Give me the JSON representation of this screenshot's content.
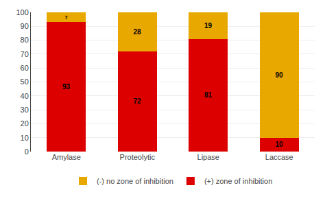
{
  "chart_data": {
    "type": "bar",
    "stacked": true,
    "categories": [
      "Amylase",
      "Proteolytic",
      "Lipase",
      "Laccase"
    ],
    "series": [
      {
        "name": "(+) zone of inhibition",
        "color": "#dc0000",
        "values": [
          93,
          72,
          81,
          10
        ]
      },
      {
        "name": "(-) no zone of inhibition",
        "color": "#e8a800",
        "values": [
          7,
          28,
          19,
          90
        ]
      }
    ],
    "ylim": [
      0,
      100
    ],
    "yticks": [
      0,
      10,
      20,
      30,
      40,
      50,
      60,
      70,
      80,
      90,
      100
    ],
    "grid": true,
    "legend": "bottom",
    "data_labels": true
  }
}
